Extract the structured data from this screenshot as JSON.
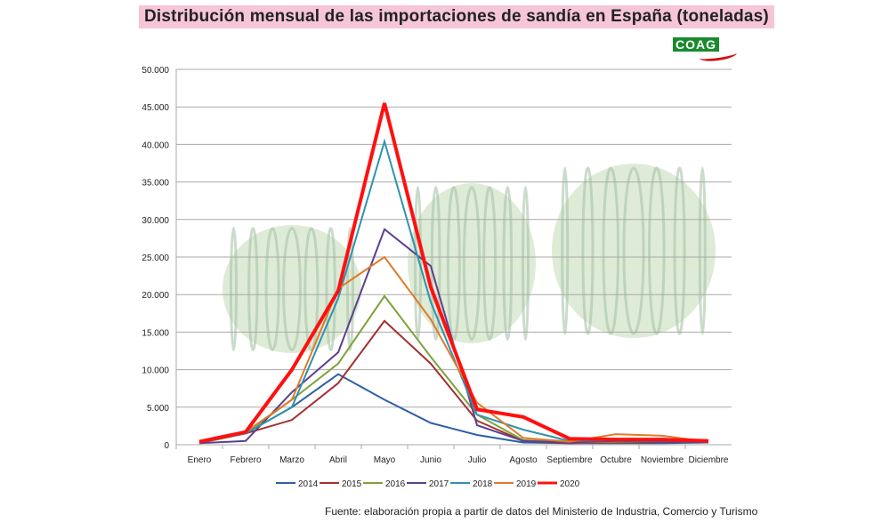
{
  "title": "Distribución mensual de las importaciones de sandía en España (toneladas)",
  "logo": "COAG",
  "source": "Fuente: elaboración propia a partir de datos del Ministerio de Industria, Comercio y Turismo",
  "chart_data": {
    "type": "line",
    "title": "Distribución mensual de las importaciones de sandía en España (toneladas)",
    "xlabel": "",
    "ylabel": "",
    "ylim": [
      0,
      50000
    ],
    "yticks": [
      "0",
      "5.000",
      "10.000",
      "15.000",
      "20.000",
      "25.000",
      "30.000",
      "35.000",
      "40.000",
      "45.000",
      "50.000"
    ],
    "categories": [
      "Enero",
      "Febrero",
      "Marzo",
      "Abril",
      "Mayo",
      "Junio",
      "Julio",
      "Agosto",
      "Septiembre",
      "Octubre",
      "Noviembre",
      "Diciembre"
    ],
    "legend_position": "bottom",
    "grid": true,
    "series": [
      {
        "name": "2014",
        "color": "#2e5fa3",
        "values": [
          300,
          1500,
          5000,
          9400,
          6000,
          2900,
          1300,
          300,
          200,
          200,
          200,
          300
        ]
      },
      {
        "name": "2015",
        "color": "#a33030",
        "values": [
          200,
          1500,
          3300,
          8200,
          16500,
          10800,
          3200,
          500,
          200,
          300,
          400,
          400
        ]
      },
      {
        "name": "2016",
        "color": "#7fa23a",
        "values": [
          200,
          1500,
          6000,
          10800,
          19800,
          11700,
          4000,
          600,
          300,
          400,
          500,
          400
        ]
      },
      {
        "name": "2017",
        "color": "#5c3f8e",
        "values": [
          200,
          500,
          7000,
          12300,
          28700,
          23800,
          2600,
          500,
          300,
          500,
          500,
          400
        ]
      },
      {
        "name": "2018",
        "color": "#2e93b0",
        "values": [
          300,
          1500,
          5000,
          19500,
          40400,
          19000,
          4000,
          2000,
          500,
          600,
          700,
          400
        ]
      },
      {
        "name": "2019",
        "color": "#e07b28",
        "values": [
          300,
          1700,
          6000,
          20800,
          25000,
          16700,
          5600,
          900,
          400,
          1400,
          1200,
          400
        ]
      },
      {
        "name": "2020",
        "color": "#ff1010",
        "values": [
          400,
          1700,
          10000,
          20500,
          45500,
          21000,
          4700,
          3700,
          800,
          700,
          700,
          500
        ]
      }
    ]
  }
}
